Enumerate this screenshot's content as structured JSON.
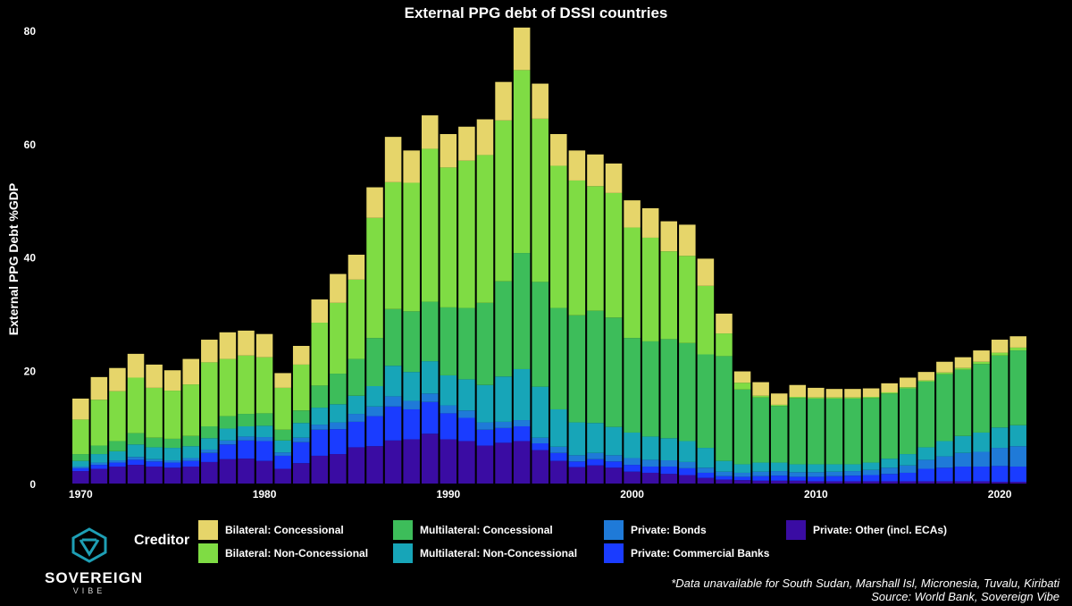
{
  "title": "External PPG debt of DSSI countries",
  "legend_title": "Creditor",
  "note": "*Data unavailable for South Sudan, Marshall Isl, Micronesia, Tuvalu, Kiribati",
  "source": "Source: World Bank, Sovereign Vibe",
  "logo": {
    "brand": "SOVEREIGN",
    "sub": "VIBE"
  },
  "chart_data": {
    "type": "bar",
    "stacked": true,
    "title": "External PPG debt of DSSI countries",
    "xlabel": "",
    "ylabel": "External PPG Debt %GDP",
    "ylim": [
      0,
      80
    ],
    "yticks": [
      0,
      20,
      40,
      60,
      80
    ],
    "xticks": [
      1970,
      1980,
      1990,
      2000,
      2010,
      2020
    ],
    "grid": false,
    "legend_position": "bottom",
    "x": [
      1970,
      1971,
      1972,
      1973,
      1974,
      1975,
      1976,
      1977,
      1978,
      1979,
      1980,
      1981,
      1982,
      1983,
      1984,
      1985,
      1986,
      1987,
      1988,
      1989,
      1990,
      1991,
      1992,
      1993,
      1994,
      1995,
      1996,
      1997,
      1998,
      1999,
      2000,
      2001,
      2002,
      2003,
      2004,
      2005,
      2006,
      2007,
      2008,
      2009,
      2010,
      2011,
      2012,
      2013,
      2014,
      2015,
      2016,
      2017,
      2018,
      2019,
      2020,
      2021
    ],
    "series": [
      {
        "name": "Private: Other (incl. ECAs)",
        "color": "#3a0ca3",
        "values": [
          2.2,
          2.6,
          3.0,
          3.3,
          3.0,
          2.8,
          3.0,
          3.8,
          4.3,
          4.4,
          4.0,
          2.6,
          3.6,
          4.9,
          5.2,
          6.4,
          6.6,
          7.6,
          7.8,
          8.8,
          7.8,
          7.5,
          6.7,
          7.2,
          7.5,
          5.9,
          4.0,
          2.9,
          3.2,
          2.8,
          2.1,
          1.9,
          1.7,
          1.5,
          1.0,
          0.7,
          0.6,
          0.5,
          0.5,
          0.5,
          0.4,
          0.4,
          0.4,
          0.4,
          0.4,
          0.4,
          0.4,
          0.4,
          0.4,
          0.4,
          0.3,
          0.3
        ]
      },
      {
        "name": "Private: Commercial Banks",
        "color": "#1a3cff",
        "values": [
          0.5,
          0.7,
          0.7,
          0.9,
          0.9,
          0.9,
          1.0,
          1.6,
          2.6,
          3.2,
          3.5,
          2.3,
          3.7,
          4.6,
          4.4,
          4.5,
          5.3,
          6.0,
          5.3,
          5.6,
          4.6,
          4.1,
          2.8,
          2.6,
          2.6,
          1.2,
          1.4,
          1.0,
          1.1,
          1.1,
          1.2,
          1.1,
          1.3,
          1.2,
          0.9,
          0.6,
          0.6,
          0.8,
          0.9,
          0.7,
          0.8,
          0.9,
          1.0,
          1.1,
          1.3,
          1.5,
          2.2,
          2.4,
          2.6,
          2.6,
          2.8,
          2.7
        ]
      },
      {
        "name": "Private: Bonds",
        "color": "#1f7ad8",
        "values": [
          0.3,
          0.4,
          0.4,
          0.5,
          0.4,
          0.4,
          0.5,
          0.6,
          0.7,
          0.7,
          0.7,
          0.6,
          0.8,
          0.9,
          1.2,
          1.4,
          1.7,
          1.8,
          1.5,
          1.5,
          1.4,
          1.3,
          1.3,
          1.1,
          1.1,
          1.0,
          1.1,
          1.1,
          1.1,
          1.1,
          1.2,
          1.2,
          1.1,
          1.1,
          0.9,
          0.8,
          0.7,
          0.8,
          0.8,
          0.8,
          0.8,
          0.8,
          0.8,
          0.9,
          1.1,
          1.3,
          1.6,
          2.0,
          2.4,
          2.6,
          3.2,
          3.6
        ]
      },
      {
        "name": "Multilateral: Non-Concessional",
        "color": "#17a5b8",
        "values": [
          1.0,
          1.5,
          1.6,
          2.2,
          2.1,
          2.2,
          2.1,
          2.0,
          2.1,
          1.8,
          2.0,
          2.1,
          2.6,
          3.0,
          3.2,
          3.2,
          3.6,
          5.4,
          5.1,
          5.7,
          5.3,
          5.5,
          6.6,
          8.0,
          9.0,
          9.0,
          6.6,
          5.8,
          5.3,
          5.0,
          4.5,
          4.1,
          3.9,
          3.7,
          3.5,
          1.9,
          1.5,
          1.6,
          1.5,
          1.4,
          1.4,
          1.3,
          1.2,
          1.3,
          1.6,
          2.0,
          2.2,
          2.7,
          3.0,
          3.4,
          3.6,
          3.7
        ]
      },
      {
        "name": "Multilateral: Concessional",
        "color": "#3dbd5a",
        "values": [
          1.2,
          1.5,
          1.8,
          2.0,
          1.7,
          1.6,
          1.8,
          2.1,
          2.2,
          2.2,
          2.2,
          1.9,
          2.2,
          3.9,
          5.4,
          6.5,
          8.5,
          10.0,
          10.7,
          10.5,
          12.0,
          12.6,
          14.5,
          16.8,
          20.5,
          18.5,
          17.9,
          18.9,
          19.8,
          19.3,
          16.7,
          16.8,
          17.5,
          17.3,
          16.5,
          18.5,
          13.2,
          11.5,
          10.0,
          11.7,
          11.6,
          11.6,
          11.6,
          11.4,
          11.5,
          11.6,
          11.6,
          11.8,
          11.7,
          12.1,
          12.7,
          13.2
        ]
      },
      {
        "name": "Bilateral: Non-Concessional",
        "color": "#7fdc44",
        "values": [
          6.1,
          8.1,
          8.8,
          9.8,
          8.8,
          8.5,
          9.1,
          11.3,
          10.1,
          10.3,
          9.9,
          7.4,
          8.1,
          11.1,
          12.5,
          14.0,
          21.2,
          22.4,
          22.7,
          27.0,
          24.7,
          26.0,
          26.1,
          28.4,
          32.3,
          28.8,
          25.1,
          23.8,
          22.0,
          22.0,
          19.5,
          18.3,
          15.5,
          15.4,
          12.1,
          4.0,
          1.2,
          0.3,
          0.2,
          0.2,
          0.2,
          0.2,
          0.2,
          0.2,
          0.2,
          0.2,
          0.2,
          0.3,
          0.3,
          0.4,
          0.5,
          0.5
        ]
      },
      {
        "name": "Bilateral: Concessional",
        "color": "#e6d56a",
        "values": [
          3.7,
          4.0,
          4.1,
          4.2,
          4.1,
          3.6,
          4.5,
          4.0,
          4.7,
          4.4,
          4.1,
          2.6,
          3.3,
          4.1,
          5.1,
          4.4,
          5.4,
          8.0,
          5.7,
          5.9,
          5.9,
          6.0,
          6.3,
          6.8,
          7.5,
          6.2,
          5.6,
          5.3,
          5.6,
          5.2,
          4.8,
          5.2,
          5.3,
          5.5,
          4.8,
          3.5,
          2.0,
          2.4,
          2.0,
          2.1,
          1.7,
          1.5,
          1.5,
          1.5,
          1.6,
          1.7,
          1.5,
          1.9,
          1.9,
          2.0,
          2.3,
          2.0
        ]
      }
    ]
  }
}
